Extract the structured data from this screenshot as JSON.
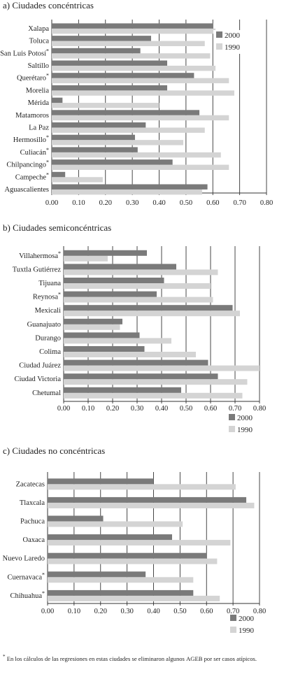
{
  "colors": {
    "y2000": "#7a7a7a",
    "y1990": "#d4d4d4",
    "grid": "#333333",
    "text": "#222222"
  },
  "footnote": {
    "mark": "*",
    "text_before": "En los cálculos de las regresiones en estas ciudades se eliminaron algunos",
    "abbr": "AGEB",
    "text_after": "por ser casos atípicos."
  },
  "chart_data": [
    {
      "type": "bar",
      "orientation": "horizontal",
      "title": "a) Ciudades concéntricas",
      "categories": [
        "Xalapa",
        "Toluca",
        "San Luis Potosí*",
        "Saltillo",
        "Querétaro*",
        "Morelia",
        "Mérida",
        "Matamoros",
        "La Paz",
        "Hermosillo*",
        "Culiacán*",
        "Chilpancingo*",
        "Campeche*",
        "Aguascalientes"
      ],
      "series": [
        {
          "name": "2000",
          "values": [
            0.6,
            0.37,
            0.33,
            0.43,
            0.53,
            0.43,
            0.04,
            0.55,
            0.35,
            0.31,
            0.32,
            0.45,
            0.05,
            0.58
          ]
        },
        {
          "name": "1990",
          "values": [
            0.61,
            0.57,
            0.59,
            0.61,
            0.66,
            0.68,
            0.4,
            0.66,
            0.57,
            0.49,
            0.63,
            0.66,
            0.19,
            0.56
          ]
        }
      ],
      "xlim": [
        0,
        0.8
      ],
      "xticks": [
        "0.00",
        "0.10",
        "0.20",
        "0.30",
        "0.40",
        "0.50",
        "0.60",
        "0.70",
        "0.80"
      ],
      "grid": "vertical",
      "legend_position": "top-right, inside"
    },
    {
      "type": "bar",
      "orientation": "horizontal",
      "title": "b) Ciudades semiconcéntricas",
      "categories": [
        "Villahermosa*",
        "Tuxtla Gutiérrez",
        "Tijuana",
        "Reynosa*",
        "Mexicali",
        "Guanajuato",
        "Durango",
        "Colima",
        "Ciudad Juárez",
        "Ciudad Victoria",
        "Chetumal"
      ],
      "series": [
        {
          "name": "2000",
          "values": [
            0.34,
            0.46,
            0.41,
            0.38,
            0.69,
            0.24,
            0.31,
            0.33,
            0.59,
            0.63,
            0.48
          ]
        },
        {
          "name": "1990",
          "values": [
            0.18,
            0.63,
            0.6,
            0.61,
            0.72,
            0.23,
            0.44,
            0.54,
            0.8,
            0.75,
            0.73
          ]
        }
      ],
      "xlim": [
        0,
        0.8
      ],
      "xticks": [
        "0.00",
        "0.10",
        "0.20",
        "0.30",
        "0.40",
        "0.50",
        "0.60",
        "0.70",
        "0.80"
      ],
      "grid": "vertical",
      "legend_position": "bottom-right, below axis"
    },
    {
      "type": "bar",
      "orientation": "horizontal",
      "title": "c) Ciudades no concéntricas",
      "categories": [
        "Zacatecas",
        "Tlaxcala",
        "Pachuca",
        "Oaxaca",
        "Nuevo Laredo",
        "Cuernavaca*",
        "Chihuahua*"
      ],
      "series": [
        {
          "name": "2000",
          "values": [
            0.4,
            0.75,
            0.21,
            0.47,
            0.6,
            0.37,
            0.55
          ]
        },
        {
          "name": "1990",
          "values": [
            0.71,
            0.78,
            0.51,
            0.69,
            0.64,
            0.55,
            0.65
          ]
        }
      ],
      "xlim": [
        0,
        0.8
      ],
      "xticks": [
        "0.00",
        "0.10",
        "0.20",
        "0.30",
        "0.40",
        "0.50",
        "0.60",
        "0.70",
        "0.80"
      ],
      "grid": "vertical",
      "legend_position": "bottom-right, below axis"
    }
  ]
}
